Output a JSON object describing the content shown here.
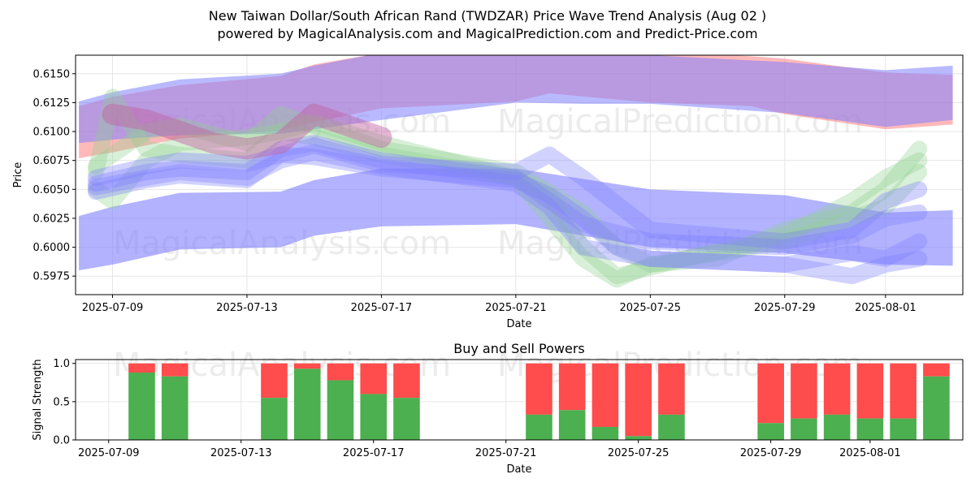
{
  "title_line1": "New Taiwan Dollar/South African Rand (TWDZAR) Price Wave Trend Analysis (Aug 02 )",
  "title_line2": "powered by MagicalAnalysis.com and MagicalPrediction.com and Predict-Price.com",
  "watermarks": [
    "MagicalAnalysis.com",
    "MagicalPrediction.com"
  ],
  "colors": {
    "buy": "#4caf50",
    "sell": "#ff4c4c",
    "blue_band": "#7f7fff",
    "red_band": "#ff7f7f",
    "purple_overlap": "#c060a0",
    "green_band": "#8fd18f"
  },
  "chart_data": [
    {
      "type": "area",
      "name": "price-wave-trend",
      "xlabel": "Date",
      "ylabel": "Price",
      "x_ticks": [
        "2025-07-09",
        "2025-07-13",
        "2025-07-17",
        "2025-07-21",
        "2025-07-25",
        "2025-07-29",
        "2025-08-01"
      ],
      "x_tick_days": [
        0,
        4,
        8,
        12,
        16,
        20,
        23
      ],
      "y_ticks": [
        "0.5975",
        "0.6000",
        "0.6025",
        "0.6050",
        "0.6075",
        "0.6100",
        "0.6125",
        "0.6150"
      ],
      "y_tick_values": [
        0.5975,
        0.6,
        0.6025,
        0.605,
        0.6075,
        0.61,
        0.6125,
        0.615
      ],
      "xlim": [
        -1.1,
        25.3
      ],
      "ylim": [
        0.5959,
        0.6166
      ],
      "grid": true,
      "bands": [
        {
          "name": "upper-red",
          "color": "red",
          "opacity": 0.55,
          "x": [
            -1,
            0,
            2,
            5,
            6,
            8,
            12,
            13,
            16,
            19,
            20,
            23,
            25
          ],
          "low": [
            0.6077,
            0.6082,
            0.6094,
            0.6101,
            0.6108,
            0.612,
            0.6126,
            0.6133,
            0.6125,
            0.6122,
            0.6115,
            0.6102,
            0.6106
          ],
          "high": [
            0.6122,
            0.613,
            0.614,
            0.6148,
            0.6158,
            0.6168,
            0.6172,
            0.6175,
            0.617,
            0.6165,
            0.6163,
            0.6151,
            0.6149
          ]
        },
        {
          "name": "upper-blue",
          "color": "blue",
          "opacity": 0.55,
          "x": [
            -1,
            0,
            2,
            5,
            6,
            8,
            12,
            14,
            16,
            20,
            23,
            25
          ],
          "low": [
            0.609,
            0.6093,
            0.6097,
            0.6098,
            0.6102,
            0.611,
            0.6125,
            0.6124,
            0.6124,
            0.6116,
            0.6104,
            0.611
          ],
          "high": [
            0.6126,
            0.6134,
            0.6145,
            0.615,
            0.6157,
            0.6168,
            0.6172,
            0.617,
            0.6166,
            0.616,
            0.6153,
            0.6157
          ]
        },
        {
          "name": "lower-blue",
          "color": "blue",
          "opacity": 0.6,
          "x": [
            -1,
            0,
            2,
            5,
            6,
            8,
            12,
            16,
            20,
            23,
            25
          ],
          "low": [
            0.598,
            0.5985,
            0.5998,
            0.6,
            0.601,
            0.6018,
            0.602,
            0.6,
            0.5995,
            0.5985,
            0.5984
          ],
          "high": [
            0.6027,
            0.6035,
            0.6047,
            0.6048,
            0.6058,
            0.6068,
            0.6068,
            0.605,
            0.6045,
            0.603,
            0.6032
          ]
        }
      ],
      "waves": [
        {
          "color": "green",
          "x": [
            -0.5,
            0,
            1,
            2,
            4,
            5,
            6,
            8,
            12,
            14,
            15,
            16,
            18,
            20,
            22,
            23,
            24
          ],
          "y": [
            0.6065,
            0.613,
            0.6085,
            0.608,
            0.6075,
            0.61,
            0.6108,
            0.609,
            0.606,
            0.599,
            0.5972,
            0.5985,
            0.599,
            0.6015,
            0.603,
            0.605,
            0.6085
          ]
        },
        {
          "color": "green",
          "x": [
            -0.5,
            0,
            1,
            2,
            4,
            5,
            6,
            8,
            12,
            13,
            14,
            15,
            17,
            20,
            22,
            23,
            24
          ],
          "y": [
            0.605,
            0.604,
            0.6075,
            0.609,
            0.6095,
            0.61,
            0.6095,
            0.608,
            0.606,
            0.6045,
            0.6,
            0.5975,
            0.599,
            0.601,
            0.604,
            0.606,
            0.6075
          ]
        },
        {
          "color": "green",
          "x": [
            -0.5,
            1,
            2,
            4,
            5,
            6,
            8,
            12,
            14,
            15,
            16,
            20,
            23,
            24
          ],
          "y": [
            0.607,
            0.61,
            0.6105,
            0.609,
            0.6115,
            0.6105,
            0.6085,
            0.6065,
            0.603,
            0.6,
            0.5985,
            0.6005,
            0.6035,
            0.6065
          ]
        },
        {
          "color": "blue",
          "x": [
            -0.5,
            1,
            2,
            4,
            5,
            6,
            8,
            12,
            13,
            14,
            16,
            20,
            22,
            23,
            24
          ],
          "y": [
            0.6055,
            0.6065,
            0.6068,
            0.6065,
            0.6085,
            0.609,
            0.6075,
            0.606,
            0.604,
            0.602,
            0.6005,
            0.6,
            0.601,
            0.6025,
            0.603
          ]
        },
        {
          "color": "blue",
          "x": [
            -0.5,
            1,
            2,
            4,
            5,
            6,
            8,
            12,
            13,
            14,
            16,
            20,
            22,
            23,
            24
          ],
          "y": [
            0.606,
            0.607,
            0.6075,
            0.6072,
            0.608,
            0.6088,
            0.6072,
            0.6065,
            0.608,
            0.606,
            0.6015,
            0.6005,
            0.6015,
            0.604,
            0.605
          ]
        },
        {
          "color": "blue",
          "x": [
            -0.5,
            1,
            2,
            4,
            5,
            6,
            8,
            12,
            13,
            14,
            16,
            20,
            22,
            23,
            24
          ],
          "y": [
            0.6052,
            0.606,
            0.6065,
            0.606,
            0.6075,
            0.6082,
            0.607,
            0.6055,
            0.6035,
            0.6,
            0.599,
            0.5985,
            0.5995,
            0.599,
            0.6005
          ]
        },
        {
          "color": "blue",
          "x": [
            -0.5,
            1,
            2,
            4,
            5,
            6,
            8,
            12,
            13,
            14,
            15,
            16,
            20,
            22,
            23,
            24
          ],
          "y": [
            0.6048,
            0.6058,
            0.6062,
            0.6058,
            0.608,
            0.6078,
            0.6068,
            0.6058,
            0.6045,
            0.6025,
            0.6,
            0.599,
            0.5985,
            0.5975,
            0.5985,
            0.599
          ]
        },
        {
          "color": "purple",
          "x": [
            0,
            1,
            2,
            3,
            4,
            5,
            6,
            7,
            8
          ],
          "y": [
            0.6115,
            0.611,
            0.61,
            0.609,
            0.6085,
            0.609,
            0.6115,
            0.6105,
            0.6095
          ]
        }
      ]
    },
    {
      "type": "bar",
      "name": "buy-and-sell-powers",
      "title": "Buy and Sell Powers",
      "xlabel": "Date",
      "ylabel": "Signal Strength",
      "x_ticks": [
        "2025-07-09",
        "2025-07-13",
        "2025-07-17",
        "2025-07-21",
        "2025-07-25",
        "2025-07-29",
        "2025-08-01"
      ],
      "x_tick_days": [
        0,
        4,
        8,
        12,
        16,
        20,
        23
      ],
      "y_ticks": [
        "0.0",
        "0.5",
        "1.0"
      ],
      "y_tick_values": [
        0,
        0.5,
        1.0
      ],
      "xlim": [
        -1.0,
        25.8
      ],
      "ylim": [
        0,
        1.05
      ],
      "grid": true,
      "days": [
        1,
        2,
        5,
        6,
        7,
        8,
        9,
        13,
        14,
        15,
        16,
        17,
        20,
        21,
        22,
        23,
        24,
        25
      ],
      "buy": [
        0.88,
        0.83,
        0.55,
        0.93,
        0.78,
        0.6,
        0.55,
        0.33,
        0.39,
        0.17,
        0.05,
        0.33,
        0.22,
        0.28,
        0.33,
        0.28,
        0.28,
        0.83
      ],
      "sell_total": 1.0
    }
  ]
}
